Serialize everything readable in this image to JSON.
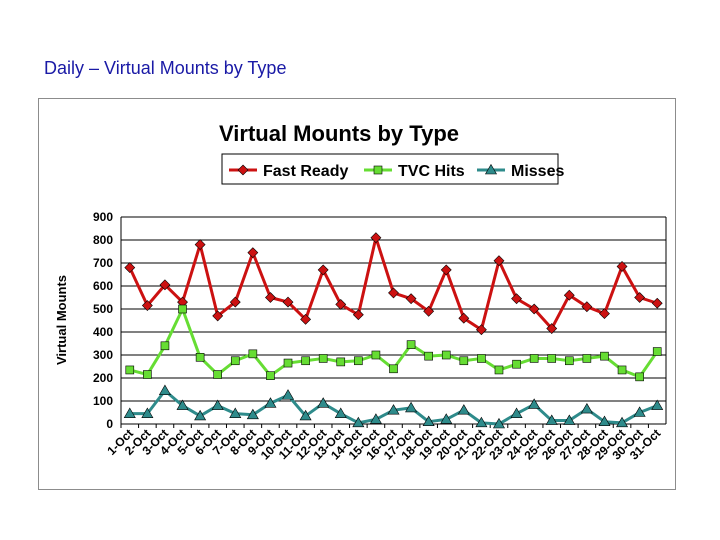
{
  "slide": {
    "title": "Daily – Virtual Mounts by Type"
  },
  "chart_data": {
    "type": "line",
    "title": "Virtual Mounts by Type",
    "xlabel": "",
    "ylabel": "Virtual Mounts",
    "ylim": [
      0,
      900
    ],
    "yticks": [
      "0",
      "100",
      "200",
      "300",
      "400",
      "500",
      "600",
      "700",
      "800",
      "900"
    ],
    "grid": true,
    "legend_position": "top",
    "categories": [
      "1-Oct",
      "2-Oct",
      "3-Oct",
      "4-Oct",
      "5-Oct",
      "6-Oct",
      "7-Oct",
      "8-Oct",
      "9-Oct",
      "10-Oct",
      "11-Oct",
      "12-Oct",
      "13-Oct",
      "14-Oct",
      "15-Oct",
      "16-Oct",
      "17-Oct",
      "18-Oct",
      "19-Oct",
      "20-Oct",
      "21-Oct",
      "22-Oct",
      "23-Oct",
      "24-Oct",
      "25-Oct",
      "26-Oct",
      "27-Oct",
      "28-Oct",
      "29-Oct",
      "30-Oct",
      "31-Oct"
    ],
    "series": [
      {
        "name": "Fast Ready",
        "color": "#cc1111",
        "marker": "diamond",
        "values": [
          680,
          515,
          605,
          530,
          780,
          470,
          530,
          745,
          550,
          530,
          455,
          670,
          520,
          475,
          810,
          570,
          545,
          490,
          670,
          460,
          410,
          710,
          545,
          500,
          415,
          560,
          510,
          480,
          685,
          550,
          525
        ]
      },
      {
        "name": "TVC Hits",
        "color": "#66dd33",
        "marker": "square",
        "values": [
          235,
          215,
          340,
          500,
          290,
          215,
          275,
          305,
          210,
          265,
          275,
          285,
          270,
          275,
          300,
          240,
          345,
          295,
          300,
          275,
          285,
          235,
          260,
          285,
          285,
          275,
          285,
          295,
          235,
          205,
          315
        ]
      },
      {
        "name": "Misses",
        "color": "#2e8b8b",
        "marker": "triangle",
        "values": [
          45,
          45,
          145,
          80,
          35,
          80,
          45,
          40,
          90,
          125,
          35,
          90,
          45,
          5,
          20,
          60,
          70,
          10,
          20,
          60,
          5,
          0,
          45,
          85,
          15,
          15,
          65,
          10,
          5,
          50,
          80
        ]
      }
    ]
  }
}
